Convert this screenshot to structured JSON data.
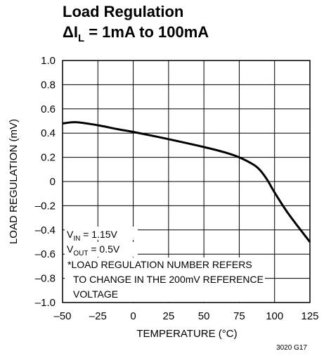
{
  "chart_data": {
    "type": "line",
    "title_line1": "Load Regulation",
    "title_line2_prefix": "ΔI",
    "title_line2_sub": "L",
    "title_line2_suffix": " = 1mA to 100mA",
    "xlabel": "TEMPERATURE (°C)",
    "ylabel": "LOAD REGULATION (mV)",
    "xlim": [
      -50,
      125
    ],
    "ylim": [
      -1.0,
      1.0
    ],
    "x_ticks": [
      -50,
      -25,
      0,
      25,
      50,
      75,
      100,
      125
    ],
    "x_tick_labels": [
      "–50",
      "–25",
      "0",
      "25",
      "50",
      "75",
      "100",
      "125"
    ],
    "y_ticks": [
      1.0,
      0.8,
      0.6,
      0.4,
      0.2,
      0,
      -0.2,
      -0.4,
      -0.6,
      -0.8,
      -1.0
    ],
    "y_tick_labels": [
      "1.0",
      "0.8",
      "0.6",
      "0.4",
      "0.2",
      "0",
      "–0.2",
      "–0.4",
      "–0.6",
      "–0.8",
      "–1.0"
    ],
    "grid": true,
    "series": [
      {
        "color": "#000000",
        "x": [
          -50,
          -40,
          -25,
          -10,
          0,
          25,
          50,
          65,
          75,
          85,
          90,
          95,
          100,
          110,
          125
        ],
        "y": [
          0.48,
          0.49,
          0.465,
          0.43,
          0.41,
          0.35,
          0.285,
          0.24,
          0.2,
          0.14,
          0.09,
          0.01,
          -0.09,
          -0.27,
          -0.5
        ]
      }
    ],
    "annotations": {
      "vin_prefix": "V",
      "vin_sub": "IN",
      "vin_suffix": " = 1.15V",
      "vout_prefix": "V",
      "vout_sub": "OUT",
      "vout_suffix": " = 0.5V",
      "note_line1": "*LOAD REGULATION NUMBER REFERS",
      "note_line2": "TO CHANGE IN THE 200mV REFERENCE",
      "note_line3": "VOLTAGE"
    },
    "figure_code": "3020 G17"
  }
}
